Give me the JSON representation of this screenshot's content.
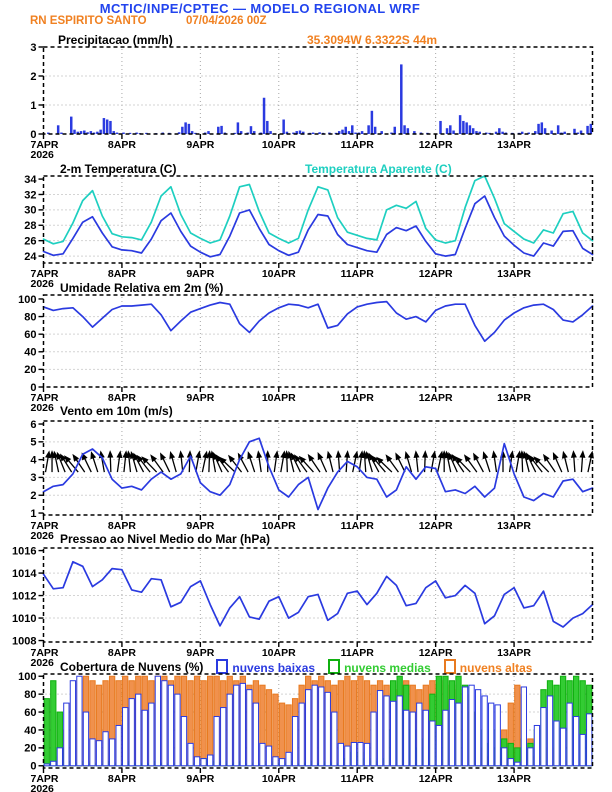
{
  "header": {
    "model_title": "MCTIC/INPE/CPTEC — MODELO REGIONAL WRF",
    "station": "RN ESPIRITO SANTO",
    "run_datetime": "07/04/2026 00Z",
    "location": "35.3094W 6.3322S 44m"
  },
  "colors": {
    "header_blue": "#2244ee",
    "accent_orange": "#f08122",
    "series_blue": "#2a3ae0",
    "series_cyan": "#1ecfc0",
    "cloud_mid_fill": "#33cc33",
    "cloud_mid_outline": "#10b010",
    "cloud_high_fill": "#f0914d",
    "cloud_high_outline": "#e87a20",
    "grid_gray": "#a8a8a8",
    "axis_black": "#000000"
  },
  "x_axis": {
    "tick_labels": [
      "7APR",
      "8APR",
      "9APR",
      "10APR",
      "11APR",
      "12APR",
      "13APR"
    ],
    "year_label": "2026",
    "hours_total": 168,
    "tick_step_hours": 24
  },
  "chart_data": [
    {
      "id": "precipitation",
      "type": "bar",
      "title": "Precipitacao (mm/h)",
      "ylabel": "mm/h",
      "ylim": [
        0,
        3
      ],
      "yticks": [
        0,
        1,
        2,
        3
      ],
      "step_hours": 1,
      "color": "#2a3ae0",
      "values": [
        0,
        0.05,
        0,
        0,
        0.3,
        0.05,
        0,
        0,
        0.6,
        0.15,
        0.08,
        0.1,
        0.12,
        0.06,
        0.1,
        0.05,
        0.08,
        0.15,
        0.55,
        0.5,
        0.45,
        0.1,
        0.05,
        0,
        0.05,
        0,
        0.04,
        0,
        0.05,
        0.03,
        0,
        0.04,
        0,
        0,
        0.03,
        0,
        0.05,
        0,
        0.04,
        0,
        0,
        0.06,
        0.25,
        0.4,
        0.35,
        0.1,
        0.04,
        0,
        0,
        0.05,
        0.1,
        0,
        0,
        0.25,
        0.28,
        0.05,
        0,
        0,
        0.04,
        0.4,
        0.1,
        0,
        0.05,
        0.27,
        0.1,
        0,
        0.05,
        1.25,
        0.45,
        0.1,
        0,
        0,
        0,
        0.5,
        0.08,
        0,
        0.05,
        0.1,
        0.12,
        0.08,
        0,
        0.04,
        0.05,
        0,
        0.06,
        0.04,
        0,
        0.05,
        0,
        0.04,
        0.1,
        0.15,
        0.25,
        0.1,
        0.3,
        0.05,
        0.05,
        0.1,
        0,
        0.3,
        0.8,
        0.25,
        0,
        0.1,
        0,
        0,
        0.05,
        0.25,
        0,
        2.4,
        0.3,
        0.2,
        0,
        0.1,
        0,
        0.05,
        0,
        0.04,
        0,
        0,
        0,
        0.45,
        0,
        0.2,
        0.3,
        0.12,
        0,
        0.65,
        0.45,
        0.4,
        0.3,
        0.2,
        0.1,
        0.08,
        0,
        0.05,
        0.04,
        0,
        0.08,
        0.2,
        0.08,
        0.05,
        0,
        0.04,
        0,
        0.04,
        0.08,
        0,
        0.05,
        0,
        0.1,
        0.35,
        0.4,
        0.2,
        0,
        0.12,
        0,
        0.3,
        0.05,
        0.08,
        0,
        0,
        0.18,
        0.05,
        0.12,
        0,
        0.28,
        0.35
      ]
    },
    {
      "id": "temperature_2m",
      "type": "line",
      "title": "2-m Temperatura (C)",
      "title2": "Temperatura Aparente (C)",
      "ylim": [
        23.1,
        34.4
      ],
      "yticks": [
        24,
        26,
        28,
        30,
        32,
        34
      ],
      "step_hours": 3,
      "series": [
        {
          "name": "2-m Temperatura (C)",
          "color": "#2a3ae0",
          "values": [
            24.6,
            24.1,
            24.3,
            26.3,
            28.4,
            29.1,
            27.0,
            25.2,
            24.8,
            24.7,
            24.4,
            26.2,
            28.6,
            29.6,
            27.2,
            25.3,
            24.5,
            23.9,
            24.2,
            26.6,
            29.6,
            30.0,
            27.6,
            25.5,
            24.7,
            24.1,
            24.5,
            27.4,
            29.4,
            29.2,
            26.8,
            25.5,
            25.1,
            24.7,
            24.5,
            26.8,
            27.7,
            27.3,
            27.9,
            25.9,
            24.3,
            24.0,
            24.2,
            27.6,
            30.8,
            31.8,
            29.0,
            26.6,
            25.4,
            24.4,
            24.0,
            25.7,
            25.3,
            27.2,
            27.3,
            25.0,
            24.2
          ]
        },
        {
          "name": "Temperatura Aparente (C)",
          "color": "#1ecfc0",
          "values": [
            26.2,
            25.6,
            25.9,
            28.3,
            31.2,
            32.5,
            29.2,
            26.9,
            26.5,
            26.4,
            26.1,
            28.4,
            31.8,
            33.0,
            29.4,
            27.0,
            26.3,
            25.7,
            26.1,
            29.2,
            33.0,
            33.3,
            29.8,
            27.0,
            26.3,
            25.7,
            26.3,
            30.0,
            33.0,
            32.6,
            29.0,
            27.1,
            26.7,
            26.3,
            26.1,
            30.0,
            30.6,
            30.2,
            31.1,
            27.6,
            26.1,
            25.7,
            26.0,
            30.3,
            33.8,
            34.4,
            31.5,
            28.2,
            27.2,
            26.2,
            25.7,
            27.4,
            27.0,
            29.5,
            29.8,
            27.0,
            26.0
          ]
        }
      ]
    },
    {
      "id": "humidity_2m",
      "type": "line",
      "title": "Umidade Relativa em 2m (%)",
      "ylim": [
        0,
        104.5
      ],
      "yticks": [
        0,
        20,
        40,
        60,
        80,
        100
      ],
      "step_hours": 3,
      "series": [
        {
          "name": "Umidade Relativa",
          "color": "#2a3ae0",
          "values": [
            91,
            87,
            89,
            90,
            80,
            68,
            78,
            88,
            92,
            92,
            93,
            94,
            82,
            64,
            75,
            85,
            89,
            93,
            96,
            94,
            72,
            62,
            75,
            84,
            90,
            94,
            93,
            90,
            94,
            67,
            70,
            83,
            91,
            94,
            96,
            97,
            84,
            77,
            80,
            74,
            87,
            92,
            94,
            94,
            70,
            52,
            62,
            76,
            84,
            90,
            93,
            94,
            88,
            76,
            74,
            82,
            92
          ]
        }
      ]
    },
    {
      "id": "wind_10m",
      "type": "line",
      "title": "Vento em 10m (m/s)",
      "ylim": [
        0.89,
        6.17
      ],
      "yticks": [
        1,
        2,
        3,
        4,
        5,
        6
      ],
      "step_hours": 3,
      "barb_step_hours": 2,
      "barb_base_value": 3.3,
      "barb_angles_deg": [
        10,
        0,
        -12,
        -22,
        -32,
        -40,
        -34,
        -26,
        -18,
        -10,
        -2,
        8,
        6,
        -6,
        -16,
        -28,
        -38,
        -44,
        -36,
        -26,
        -16,
        -6,
        2,
        10,
        12,
        2,
        -10,
        -24,
        -36,
        -46,
        -38,
        -28,
        -18,
        -8,
        0,
        8,
        10,
        -2,
        -14,
        -26,
        -36,
        -42,
        -34,
        -24,
        -14,
        -4,
        4,
        12,
        8,
        -4,
        -16,
        -28,
        -40,
        -46,
        -36,
        -26,
        -16,
        -6,
        2,
        10,
        12,
        0,
        -12,
        -24,
        -34,
        -44,
        -36,
        -28,
        -18,
        -8,
        0,
        8,
        10,
        -2,
        -14,
        -26,
        -38,
        -44,
        -34,
        -24,
        -14,
        -4,
        4,
        12
      ],
      "series": [
        {
          "name": "Vento 10m",
          "color": "#2a3ae0",
          "values": [
            2.2,
            2.5,
            2.6,
            3.2,
            4.3,
            4.6,
            4.1,
            2.9,
            2.4,
            2.5,
            2.3,
            2.9,
            3.3,
            2.9,
            3.2,
            4.2,
            2.7,
            2.2,
            2.0,
            2.6,
            4.0,
            5.0,
            5.2,
            3.6,
            2.3,
            1.9,
            2.6,
            3.0,
            1.2,
            2.4,
            3.3,
            3.9,
            3.6,
            3.0,
            2.9,
            1.9,
            2.3,
            3.6,
            2.9,
            3.6,
            3.5,
            2.2,
            2.3,
            2.1,
            2.5,
            1.9,
            2.4,
            4.9,
            3.2,
            1.9,
            1.7,
            2.1,
            1.9,
            2.8,
            2.9,
            2.2,
            2.4
          ]
        }
      ]
    },
    {
      "id": "mslp",
      "type": "line",
      "title": "Pressao ao Nivel Medio do Mar (hPa)",
      "ylim": [
        1007.87,
        1016.23
      ],
      "yticks": [
        1008,
        1010,
        1012,
        1014,
        1016
      ],
      "step_hours": 3,
      "series": [
        {
          "name": "Pressao",
          "color": "#2a3ae0",
          "values": [
            1013.9,
            1012.6,
            1012.7,
            1015.0,
            1014.6,
            1012.8,
            1013.4,
            1014.4,
            1014.3,
            1012.5,
            1012.3,
            1013.5,
            1013.4,
            1011.0,
            1011.4,
            1012.8,
            1013.3,
            1011.2,
            1009.3,
            1010.9,
            1011.9,
            1010.1,
            1009.9,
            1011.5,
            1011.9,
            1010.0,
            1010.5,
            1011.9,
            1012.1,
            1009.8,
            1010.4,
            1012.2,
            1012.4,
            1011.2,
            1012.2,
            1013.7,
            1012.9,
            1011.1,
            1011.3,
            1012.7,
            1013.3,
            1011.8,
            1012.0,
            1012.9,
            1012.2,
            1009.5,
            1010.2,
            1012.1,
            1012.7,
            1010.9,
            1011.1,
            1012.4,
            1009.7,
            1009.2,
            1010.0,
            1010.4,
            1011.2
          ]
        }
      ]
    },
    {
      "id": "clouds",
      "type": "bar-multi",
      "title": "Cobertura de Nuvens (%)",
      "ylim": [
        -2.5,
        102.5
      ],
      "yticks": [
        0,
        20,
        40,
        60,
        80,
        100
      ],
      "step_hours": 2,
      "series": [
        {
          "name": "nuvens baixas",
          "fill": "#ffffff",
          "outline": "#2a3ae0",
          "values": [
            2,
            5,
            20,
            70,
            95,
            100,
            60,
            30,
            28,
            38,
            30,
            45,
            65,
            75,
            80,
            62,
            70,
            100,
            95,
            90,
            80,
            55,
            25,
            10,
            8,
            12,
            55,
            65,
            80,
            90,
            92,
            85,
            70,
            25,
            22,
            10,
            8,
            15,
            55,
            70,
            85,
            90,
            88,
            82,
            60,
            25,
            22,
            26,
            26,
            25,
            60,
            84,
            78,
            72,
            78,
            62,
            60,
            70,
            62,
            50,
            45,
            62,
            74,
            70,
            88,
            90,
            85,
            78,
            70,
            68,
            20,
            8,
            4,
            88,
            20,
            45,
            65,
            78,
            50,
            42,
            70,
            55,
            35,
            58
          ]
        },
        {
          "name": "nuvens medias",
          "fill": "#33cc33",
          "outline": "#10b010",
          "values": [
            75,
            95,
            60,
            20,
            5,
            3,
            5,
            3,
            2,
            5,
            3,
            2,
            5,
            3,
            2,
            3,
            2,
            5,
            3,
            2,
            3,
            2,
            3,
            2,
            8,
            5,
            3,
            5,
            2,
            3,
            5,
            2,
            3,
            2,
            5,
            3,
            3,
            5,
            2,
            3,
            5,
            2,
            3,
            5,
            3,
            2,
            8,
            15,
            15,
            8,
            5,
            8,
            40,
            95,
            100,
            90,
            40,
            20,
            30,
            80,
            100,
            100,
            95,
            100,
            90,
            60,
            40,
            25,
            40,
            20,
            30,
            25,
            20,
            30,
            25,
            40,
            85,
            95,
            90,
            100,
            95,
            100,
            95,
            90
          ]
        },
        {
          "name": "nuvens altas",
          "fill": "#f0914d",
          "outline": "#e87a20",
          "values": [
            0,
            0,
            10,
            40,
            70,
            95,
            100,
            95,
            90,
            95,
            100,
            95,
            100,
            95,
            100,
            100,
            95,
            100,
            100,
            95,
            100,
            100,
            95,
            100,
            95,
            100,
            100,
            95,
            100,
            95,
            100,
            90,
            95,
            90,
            85,
            80,
            70,
            68,
            75,
            90,
            100,
            95,
            100,
            95,
            90,
            95,
            100,
            95,
            100,
            95,
            90,
            95,
            90,
            85,
            90,
            95,
            90,
            85,
            90,
            95,
            90,
            95,
            90,
            85,
            80,
            60,
            20,
            10,
            5,
            8,
            40,
            70,
            90,
            80,
            30,
            10,
            5,
            20,
            0,
            5,
            0,
            0,
            5,
            0
          ]
        }
      ]
    }
  ]
}
